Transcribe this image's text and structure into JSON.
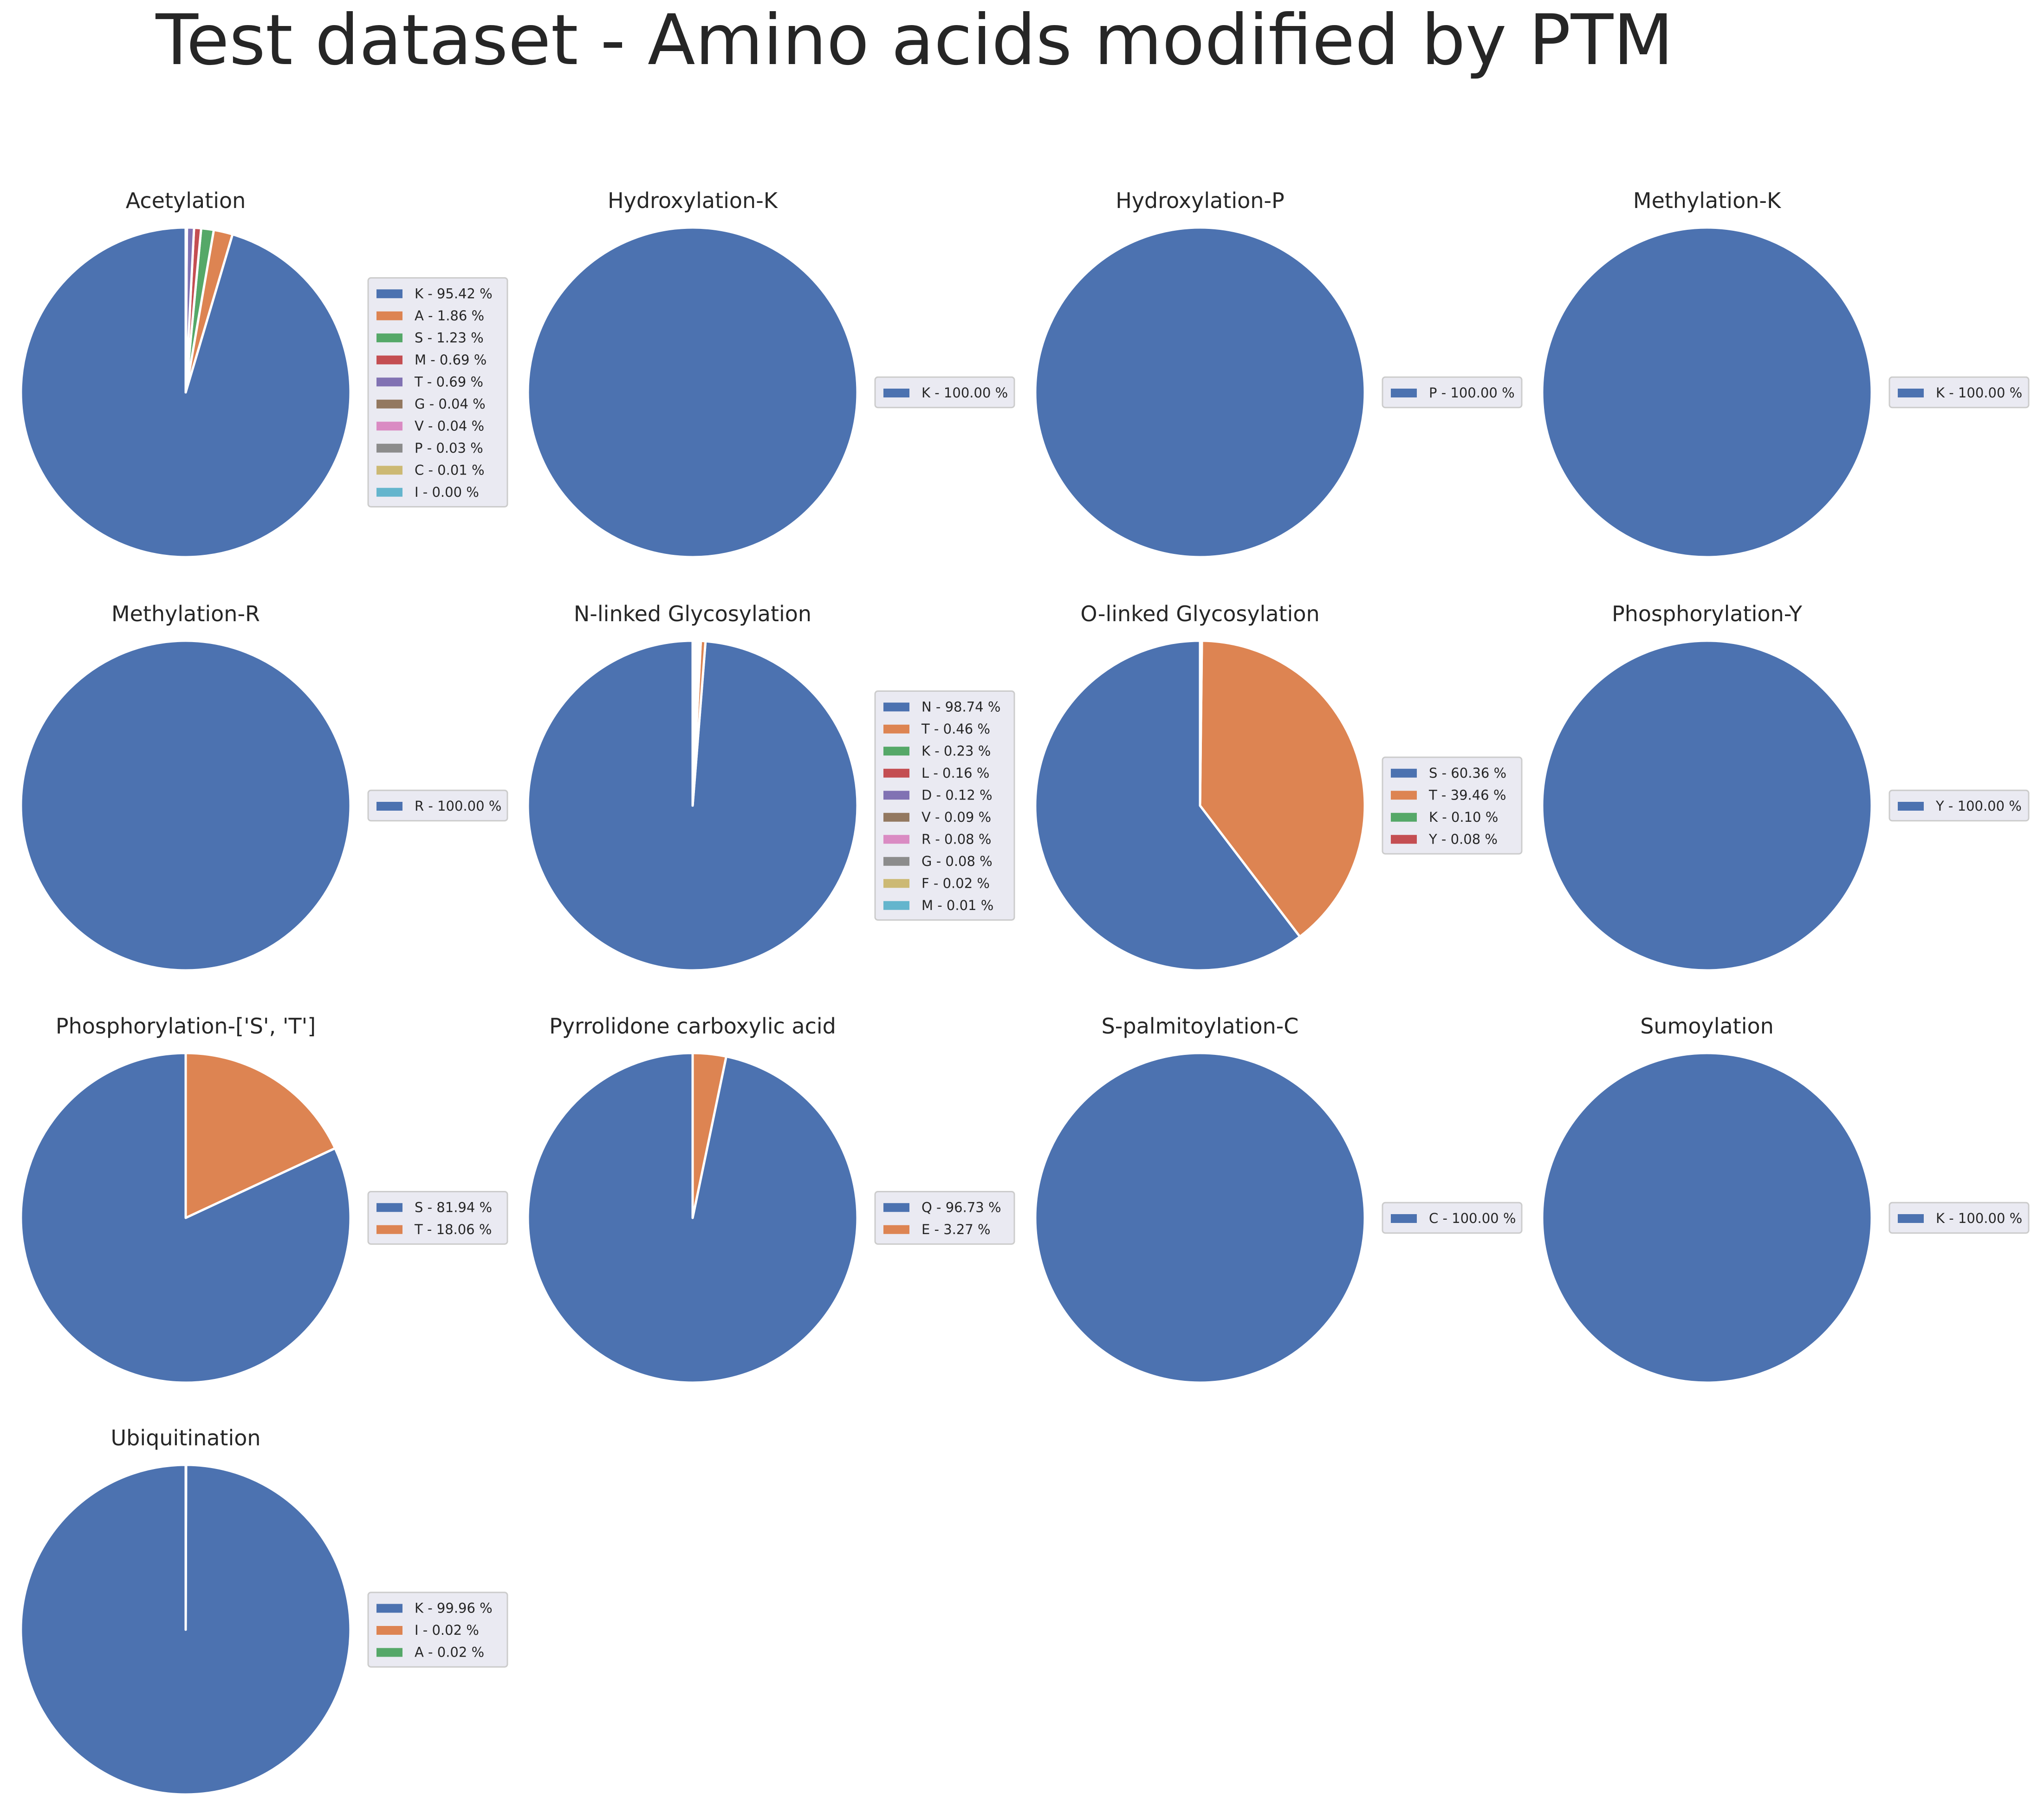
{
  "title": "Test dataset - Amino acids modified by PTM",
  "palette": {
    "blue": "#4c72b0",
    "orange": "#dd8452",
    "green": "#55a868",
    "red": "#c44e52",
    "purple": "#8172b3",
    "brown": "#937860",
    "pink": "#da8bc3",
    "gray": "#8c8c8c",
    "olive": "#ccb974",
    "cyan": "#64b5cd"
  },
  "chart_data": [
    {
      "type": "pie",
      "title": "Acetylation",
      "labels": [
        "K - 95.42 %",
        "A - 1.86 %",
        "S - 1.23 %",
        "M - 0.69 %",
        "T - 0.69 %",
        "G - 0.04 %",
        "V - 0.04 %",
        "P - 0.03 %",
        "C - 0.01 %",
        "I - 0.00 %"
      ],
      "values": [
        95.42,
        1.86,
        1.23,
        0.69,
        0.69,
        0.04,
        0.04,
        0.03,
        0.01,
        0.0
      ],
      "start_angle": 90,
      "direction": "counterclockwise",
      "legend_position": "right"
    },
    {
      "type": "pie",
      "title": "Hydroxylation-K",
      "labels": [
        "K - 100.00 %"
      ],
      "values": [
        100.0
      ],
      "start_angle": 90,
      "direction": "counterclockwise",
      "legend_position": "right"
    },
    {
      "type": "pie",
      "title": "Hydroxylation-P",
      "labels": [
        "P - 100.00 %"
      ],
      "values": [
        100.0
      ],
      "start_angle": 90,
      "direction": "counterclockwise",
      "legend_position": "right"
    },
    {
      "type": "pie",
      "title": "Methylation-K",
      "labels": [
        "K - 100.00 %"
      ],
      "values": [
        100.0
      ],
      "start_angle": 90,
      "direction": "counterclockwise",
      "legend_position": "right"
    },
    {
      "type": "pie",
      "title": "Methylation-R",
      "labels": [
        "R - 100.00 %"
      ],
      "values": [
        100.0
      ],
      "start_angle": 90,
      "direction": "counterclockwise",
      "legend_position": "right"
    },
    {
      "type": "pie",
      "title": "N-linked Glycosylation",
      "labels": [
        "N - 98.74 %",
        "T - 0.46 %",
        "K - 0.23 %",
        "L - 0.16 %",
        "D - 0.12 %",
        "V - 0.09 %",
        "R - 0.08 %",
        "G - 0.08 %",
        "F - 0.02 %",
        "M - 0.01 %"
      ],
      "values": [
        98.74,
        0.46,
        0.23,
        0.16,
        0.12,
        0.09,
        0.08,
        0.08,
        0.02,
        0.01
      ],
      "start_angle": 90,
      "direction": "counterclockwise",
      "legend_position": "right"
    },
    {
      "type": "pie",
      "title": "O-linked Glycosylation",
      "labels": [
        "S - 60.36 %",
        "T - 39.46 %",
        "K - 0.10 %",
        "Y - 0.08 %"
      ],
      "values": [
        60.36,
        39.46,
        0.1,
        0.08
      ],
      "start_angle": 90,
      "direction": "counterclockwise",
      "legend_position": "right"
    },
    {
      "type": "pie",
      "title": "Phosphorylation-Y",
      "labels": [
        "Y - 100.00 %"
      ],
      "values": [
        100.0
      ],
      "start_angle": 90,
      "direction": "counterclockwise",
      "legend_position": "right"
    },
    {
      "type": "pie",
      "title": "Phosphorylation-['S', 'T']",
      "labels": [
        "S - 81.94 %",
        "T - 18.06 %"
      ],
      "values": [
        81.94,
        18.06
      ],
      "start_angle": 90,
      "direction": "counterclockwise",
      "legend_position": "right"
    },
    {
      "type": "pie",
      "title": "Pyrrolidone carboxylic acid",
      "labels": [
        "Q - 96.73 %",
        "E - 3.27 %"
      ],
      "values": [
        96.73,
        3.27
      ],
      "start_angle": 90,
      "direction": "counterclockwise",
      "legend_position": "right"
    },
    {
      "type": "pie",
      "title": "S-palmitoylation-C",
      "labels": [
        "C - 100.00 %"
      ],
      "values": [
        100.0
      ],
      "start_angle": 90,
      "direction": "counterclockwise",
      "legend_position": "right"
    },
    {
      "type": "pie",
      "title": "Sumoylation",
      "labels": [
        "K - 100.00 %"
      ],
      "values": [
        100.0
      ],
      "start_angle": 90,
      "direction": "counterclockwise",
      "legend_position": "right"
    },
    {
      "type": "pie",
      "title": "Ubiquitination",
      "labels": [
        "K - 99.96 %",
        "I - 0.02 %",
        "A - 0.02 %"
      ],
      "values": [
        99.96,
        0.02,
        0.02
      ],
      "start_angle": 90,
      "direction": "counterclockwise",
      "legend_position": "right"
    }
  ]
}
